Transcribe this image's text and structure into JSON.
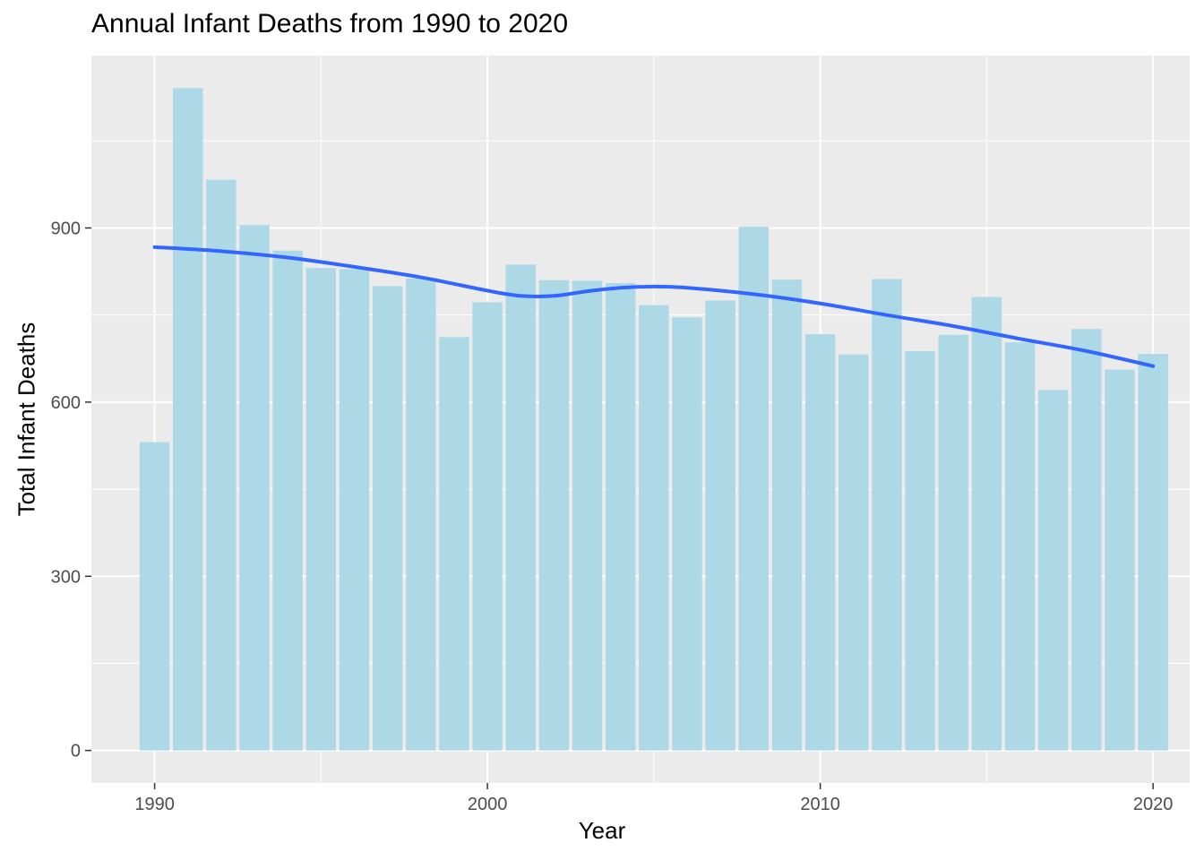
{
  "chart_data": {
    "type": "bar",
    "title": "Annual Infant Deaths from 1990 to 2020",
    "xlabel": "Year",
    "ylabel": "Total Infant Deaths",
    "x_ticks": [
      1990,
      2000,
      2010,
      2020
    ],
    "y_ticks": [
      0,
      300,
      600,
      900
    ],
    "xlim": [
      1988.1,
      2021.1
    ],
    "ylim": [
      -56,
      1197
    ],
    "grid": true,
    "bar_color": "#ADD8E6",
    "smooth_color": "#3366FF",
    "panel_color": "#EBEBEB",
    "x": [
      1990,
      1991,
      1992,
      1993,
      1994,
      1995,
      1996,
      1997,
      1998,
      1999,
      2000,
      2001,
      2002,
      2003,
      2004,
      2005,
      2006,
      2007,
      2008,
      2009,
      2010,
      2011,
      2012,
      2013,
      2014,
      2015,
      2016,
      2017,
      2018,
      2019,
      2020
    ],
    "values": [
      531,
      1141,
      983,
      905,
      861,
      831,
      829,
      800,
      813,
      712,
      772,
      837,
      810,
      809,
      805,
      767,
      746,
      775,
      902,
      811,
      717,
      682,
      812,
      688,
      716,
      781,
      703,
      621,
      726,
      656,
      683
    ],
    "series": [
      {
        "name": "",
        "type": "line",
        "x": [
          1990,
          1992,
          1994,
          1996,
          1998,
          2000,
          2001,
          2002,
          2003,
          2004,
          2005,
          2006,
          2008,
          2010,
          2012,
          2014,
          2016,
          2018,
          2020
        ],
        "values": [
          867,
          860,
          849,
          833,
          815,
          792,
          783,
          783,
          791,
          797,
          799,
          797,
          786,
          770,
          750,
          731,
          709,
          688,
          662
        ]
      }
    ]
  }
}
